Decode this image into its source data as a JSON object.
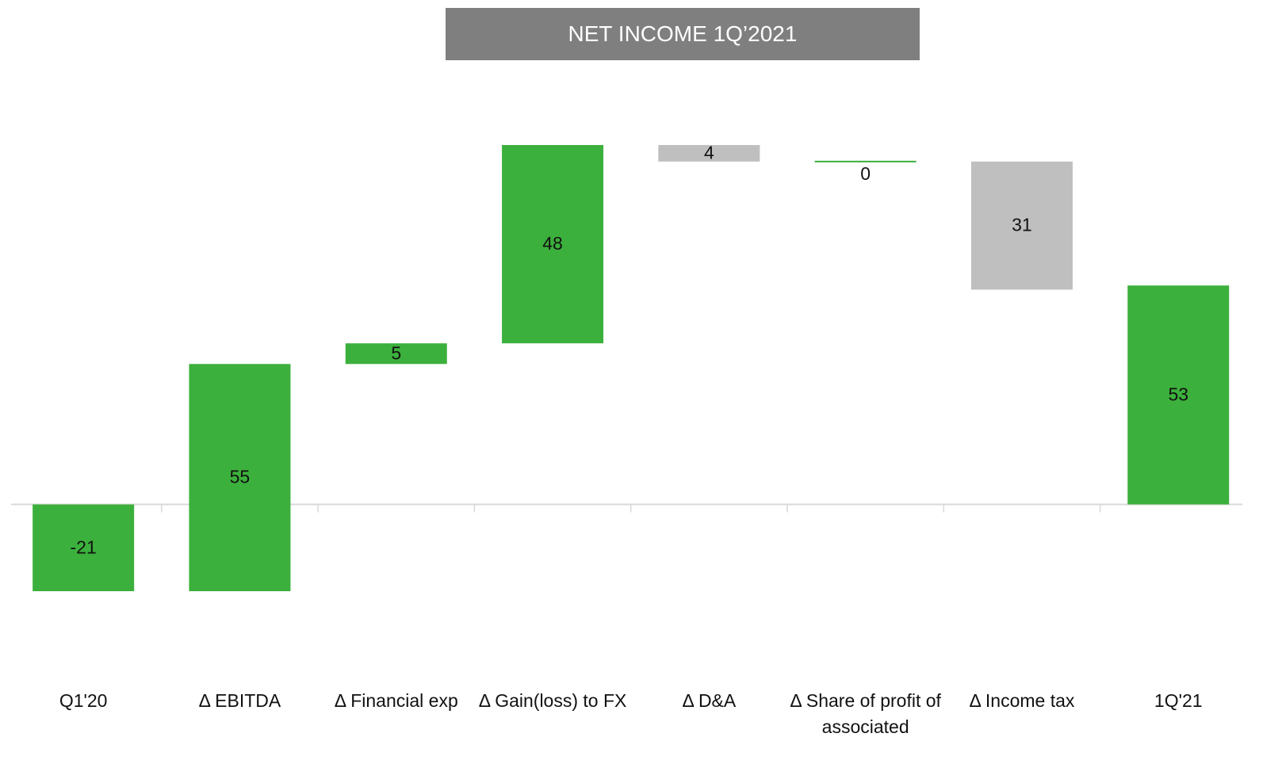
{
  "chart_data": {
    "type": "waterfall",
    "title": "NET INCOME 1Q’2021",
    "categories": [
      "Q1'20",
      "Δ EBITDA",
      "Δ Financial exp",
      "Δ Gain(loss)  to FX",
      "Δ D&A",
      "Δ Share of profit of associated",
      "Δ Income tax",
      "1Q'21"
    ],
    "values": [
      -21,
      55,
      5,
      48,
      -4,
      0,
      -31,
      53
    ],
    "value_labels": [
      "-21",
      "55",
      "5",
      "48",
      "4",
      "0",
      "31",
      "53"
    ],
    "measures": [
      "absolute",
      "relative",
      "relative",
      "relative",
      "relative",
      "relative",
      "relative",
      "total"
    ],
    "increase_color": "#3cb03c",
    "decrease_color": "#bfbfbf",
    "total_color": "#3cb03c"
  }
}
